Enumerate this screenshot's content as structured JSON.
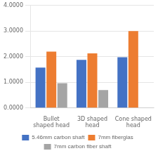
{
  "chart_data": {
    "type": "bar",
    "categories": [
      "Bullet\nshaped head",
      "3D shaped\nhead",
      "Cone shaped\nhead"
    ],
    "series": [
      {
        "name": "5.46mm carbon shaft",
        "color": "#4472C4",
        "values": [
          1.58,
          1.88,
          1.98
        ]
      },
      {
        "name": "7mm fiberglas",
        "color": "#ED7D31",
        "values": [
          2.2,
          2.13,
          3.0
        ]
      },
      {
        "name": "7mm carbon fiber shaft",
        "color": "#A5A5A5",
        "values": [
          0.97,
          0.7,
          0.0
        ]
      }
    ],
    "ylim": [
      0,
      4.0
    ],
    "yticks": [
      {
        "value": 0.0,
        "label": "0.0000"
      },
      {
        "value": 1.0,
        "label": "1.0000"
      },
      {
        "value": 2.0,
        "label": "2.0000"
      },
      {
        "value": 3.0,
        "label": "3.0000"
      },
      {
        "value": 4.0,
        "label": "4.0000"
      }
    ],
    "grid": true,
    "legend": "bottom"
  }
}
